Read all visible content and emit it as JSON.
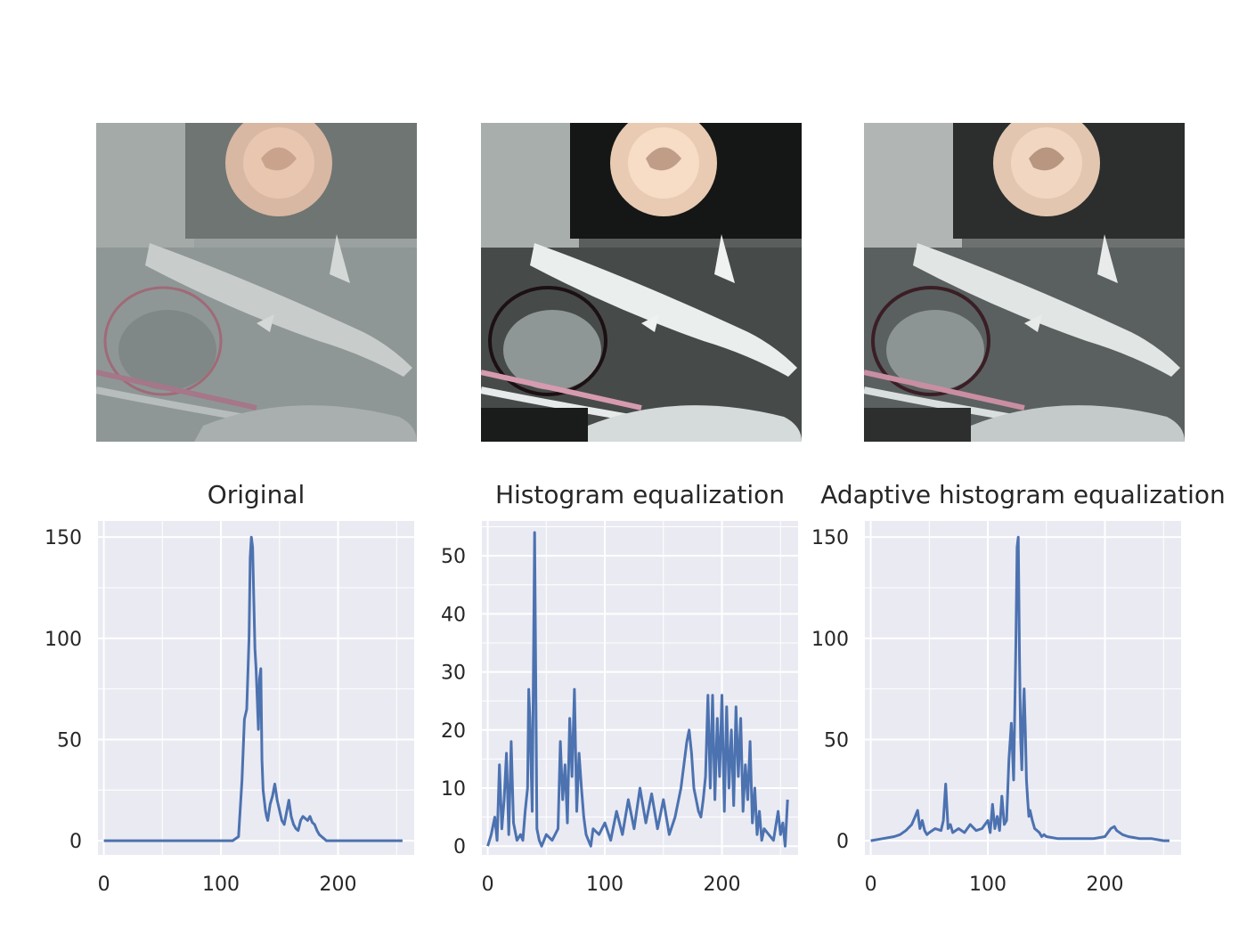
{
  "colors": {
    "plot_background": "#eaeaf2",
    "grid": "#ffffff",
    "line": "#4c72b0",
    "text": "#262626"
  },
  "photos": [
    {
      "variant": "original"
    },
    {
      "variant": "histogram-equalization"
    },
    {
      "variant": "adaptive-histogram-equalization"
    }
  ],
  "chart_data": [
    {
      "type": "line",
      "title": "Original",
      "xlabel": "",
      "ylabel": "",
      "xlim": [
        -5,
        265
      ],
      "ylim": [
        -7,
        158
      ],
      "xticks": [
        0,
        100,
        200
      ],
      "xtick_labels": [
        "0",
        "100",
        "200"
      ],
      "yticks": [
        0,
        50,
        100,
        150
      ],
      "ytick_labels": [
        "0",
        "50",
        "100",
        "150"
      ],
      "grid": true,
      "series": [
        {
          "x": [
            0,
            20,
            40,
            60,
            80,
            100,
            110,
            115,
            118,
            120,
            122,
            124,
            125,
            126,
            127,
            128,
            129,
            130,
            131,
            132,
            133,
            134,
            135,
            136,
            137,
            138,
            139,
            140,
            142,
            144,
            146,
            148,
            150,
            152,
            154,
            156,
            158,
            160,
            162,
            164,
            166,
            168,
            170,
            172,
            174,
            176,
            178,
            180,
            182,
            184,
            186,
            188,
            190,
            200,
            220,
            240,
            255
          ],
          "y": [
            0,
            0,
            0,
            0,
            0,
            0,
            0,
            2,
            30,
            60,
            65,
            100,
            140,
            150,
            145,
            120,
            95,
            85,
            70,
            55,
            80,
            85,
            40,
            25,
            20,
            15,
            12,
            10,
            18,
            22,
            28,
            20,
            15,
            10,
            8,
            14,
            20,
            12,
            8,
            6,
            5,
            10,
            12,
            11,
            10,
            12,
            9,
            8,
            5,
            3,
            2,
            1,
            0,
            0,
            0,
            0,
            0
          ]
        }
      ]
    },
    {
      "type": "line",
      "title": "Histogram equalization",
      "xlabel": "",
      "ylabel": "",
      "xlim": [
        -5,
        265
      ],
      "ylim": [
        -1.5,
        56
      ],
      "xticks": [
        0,
        100,
        200
      ],
      "xtick_labels": [
        "0",
        "100",
        "200"
      ],
      "yticks": [
        0,
        10,
        20,
        30,
        40,
        50
      ],
      "ytick_labels": [
        "0",
        "10",
        "20",
        "30",
        "40",
        "50"
      ],
      "grid": true,
      "series": [
        {
          "x": [
            0,
            3,
            6,
            8,
            10,
            12,
            14,
            16,
            18,
            20,
            22,
            25,
            28,
            30,
            32,
            34,
            35,
            36,
            38,
            40,
            42,
            44,
            46,
            48,
            50,
            55,
            60,
            62,
            64,
            66,
            68,
            70,
            72,
            74,
            76,
            78,
            80,
            82,
            84,
            86,
            88,
            90,
            95,
            100,
            105,
            110,
            115,
            120,
            125,
            130,
            135,
            140,
            145,
            150,
            155,
            160,
            165,
            170,
            172,
            174,
            176,
            178,
            180,
            182,
            184,
            186,
            188,
            190,
            192,
            194,
            196,
            198,
            200,
            202,
            204,
            206,
            208,
            210,
            212,
            214,
            216,
            218,
            220,
            222,
            224,
            226,
            228,
            230,
            232,
            234,
            236,
            240,
            244,
            248,
            250,
            252,
            254,
            256
          ],
          "y": [
            0,
            2,
            5,
            1,
            14,
            3,
            8,
            16,
            2,
            18,
            4,
            1,
            2,
            1,
            6,
            10,
            27,
            22,
            6,
            54,
            3,
            1,
            0,
            1,
            2,
            1,
            3,
            18,
            8,
            14,
            4,
            22,
            12,
            27,
            6,
            16,
            10,
            5,
            2,
            1,
            0,
            3,
            2,
            4,
            1,
            6,
            2,
            8,
            3,
            10,
            4,
            9,
            3,
            8,
            2,
            5,
            10,
            18,
            20,
            16,
            10,
            8,
            6,
            5,
            8,
            12,
            26,
            10,
            26,
            8,
            22,
            12,
            26,
            6,
            24,
            10,
            20,
            7,
            24,
            12,
            22,
            6,
            14,
            8,
            18,
            4,
            10,
            2,
            6,
            1,
            3,
            2,
            1,
            6,
            2,
            4,
            0,
            8
          ]
        }
      ]
    },
    {
      "type": "line",
      "title": "Adaptive histogram equalization",
      "xlabel": "",
      "ylabel": "",
      "xlim": [
        -5,
        265
      ],
      "ylim": [
        -7,
        158
      ],
      "xticks": [
        0,
        100,
        200
      ],
      "xtick_labels": [
        "0",
        "100",
        "200"
      ],
      "yticks": [
        0,
        50,
        100,
        150
      ],
      "ytick_labels": [
        "0",
        "50",
        "100",
        "150"
      ],
      "grid": true,
      "series": [
        {
          "x": [
            0,
            10,
            20,
            25,
            30,
            35,
            38,
            40,
            42,
            44,
            46,
            48,
            50,
            55,
            60,
            62,
            64,
            66,
            68,
            70,
            75,
            80,
            85,
            90,
            95,
            100,
            102,
            104,
            106,
            108,
            110,
            112,
            114,
            116,
            118,
            120,
            122,
            124,
            125,
            126,
            127,
            128,
            129,
            130,
            131,
            132,
            133,
            134,
            135,
            136,
            138,
            140,
            142,
            144,
            146,
            148,
            150,
            160,
            170,
            180,
            190,
            200,
            205,
            208,
            210,
            215,
            220,
            230,
            240,
            250,
            255
          ],
          "y": [
            0,
            1,
            2,
            3,
            5,
            8,
            12,
            15,
            6,
            10,
            5,
            3,
            4,
            6,
            5,
            10,
            28,
            6,
            8,
            4,
            6,
            4,
            8,
            5,
            6,
            10,
            4,
            18,
            6,
            12,
            5,
            22,
            8,
            10,
            40,
            58,
            30,
            100,
            145,
            150,
            90,
            50,
            35,
            60,
            75,
            55,
            30,
            20,
            12,
            15,
            10,
            6,
            5,
            4,
            2,
            3,
            2,
            1,
            1,
            1,
            1,
            2,
            6,
            7,
            5,
            3,
            2,
            1,
            1,
            0,
            0
          ]
        }
      ]
    }
  ]
}
